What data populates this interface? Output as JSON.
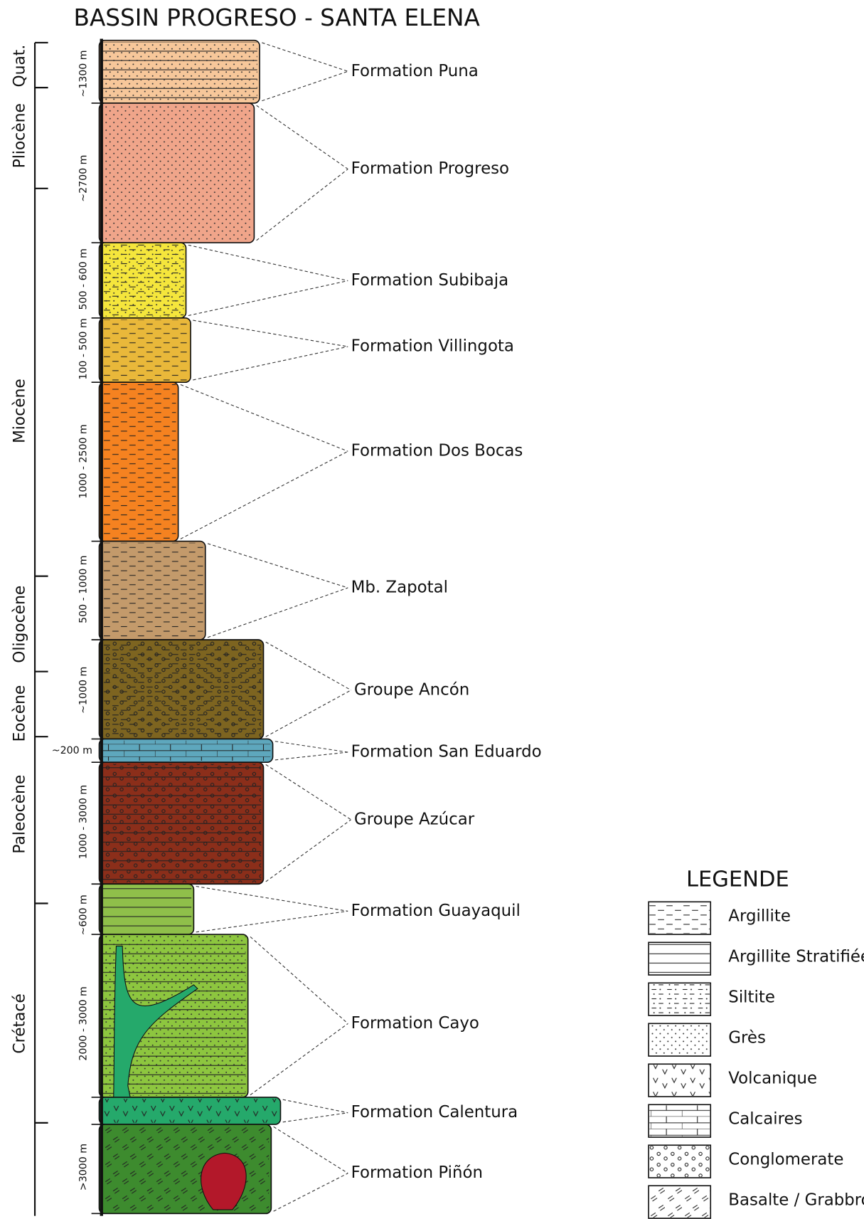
{
  "title": "BASSIN PROGRESO - SANTA ELENA",
  "epochs": [
    {
      "label": "Quat."
    },
    {
      "label": "Pliocène"
    },
    {
      "label": "Miocène"
    },
    {
      "label": "Oligocène"
    },
    {
      "label": "Eocène"
    },
    {
      "label": "Paleocène"
    },
    {
      "label": "Crétacé"
    }
  ],
  "layers": [
    {
      "thickness": "~1300 m",
      "formation": "Formation Puna"
    },
    {
      "thickness": "~2700 m",
      "formation": "Formation Progreso"
    },
    {
      "thickness": "500 - 600 m",
      "formation": "Formation Subibaja"
    },
    {
      "thickness": "100 - 500 m",
      "formation": "Formation Villingota"
    },
    {
      "thickness": "1000 - 2500 m",
      "formation": "Formation Dos Bocas"
    },
    {
      "thickness": "500 - 1000 m",
      "formation": "Mb. Zapotal"
    },
    {
      "thickness": "~1000 m",
      "formation": "Groupe Ancón"
    },
    {
      "thickness": "~200 m",
      "formation": "Formation San Eduardo"
    },
    {
      "thickness": "1000 - 3000 m",
      "formation": "Groupe Azúcar"
    },
    {
      "thickness": "~600 m",
      "formation": "Formation Guayaquil"
    },
    {
      "thickness": "2000 - 3000 m",
      "formation": "Formation Cayo"
    },
    {
      "thickness": "",
      "formation": "Formation Calentura"
    },
    {
      "thickness": ">3000 m",
      "formation": "Formation Piñón"
    }
  ],
  "legend": {
    "title": "LEGENDE",
    "items": [
      "Argillite",
      "Argillite Stratifiée",
      "Siltite",
      "Grès",
      "Volcanique",
      "Calcaires",
      "Conglomerate",
      "Basalte / Grabbro"
    ]
  }
}
